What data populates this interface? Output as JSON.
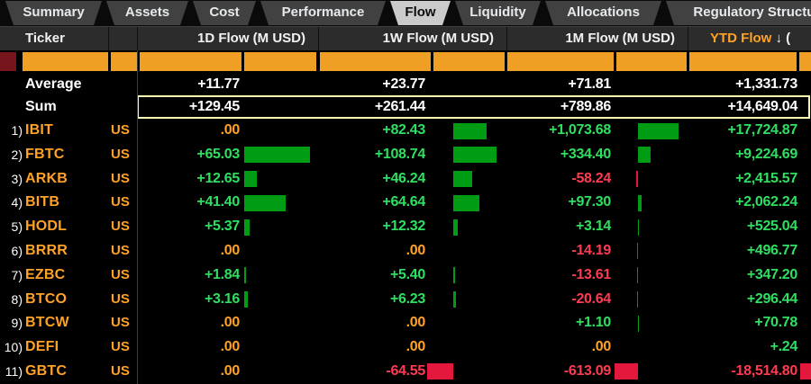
{
  "tabs": [
    {
      "label": "Summary",
      "selected": false
    },
    {
      "label": "Assets",
      "selected": false
    },
    {
      "label": "Cost",
      "selected": false
    },
    {
      "label": "Performance",
      "selected": false
    },
    {
      "label": "Flow",
      "selected": true
    },
    {
      "label": "Liquidity",
      "selected": false
    },
    {
      "label": "Allocations",
      "selected": false
    },
    {
      "label": "Regulatory Structure",
      "selected": false
    }
  ],
  "header": {
    "ticker_label": "Ticker",
    "flow_columns": [
      "1D Flow (M USD)",
      "1W Flow (M USD)",
      "1M Flow (M USD)"
    ],
    "ytd_column": {
      "label": "YTD Flow",
      "sort_icon": "↓",
      "suffix": "("
    }
  },
  "summary_rows": [
    {
      "label": "Average",
      "values": [
        "+11.77",
        "+23.77",
        "+71.81",
        "+1,331.73"
      ],
      "highlighted": false
    },
    {
      "label": "Sum",
      "values": [
        "+129.45",
        "+261.44",
        "+789.86",
        "+14,649.04"
      ],
      "highlighted": true
    }
  ],
  "rows": [
    {
      "num": "1)",
      "ticker": "IBIT",
      "exchange": "US",
      "cells": [
        {
          "text": ".00",
          "value": 0
        },
        {
          "text": "+82.43",
          "value": 82.43
        },
        {
          "text": "+1,073.68",
          "value": 1073.68
        },
        {
          "text": "+17,724.87",
          "value": 17724.87
        }
      ]
    },
    {
      "num": "2)",
      "ticker": "FBTC",
      "exchange": "US",
      "cells": [
        {
          "text": "+65.03",
          "value": 65.03
        },
        {
          "text": "+108.74",
          "value": 108.74
        },
        {
          "text": "+334.40",
          "value": 334.4
        },
        {
          "text": "+9,224.69",
          "value": 9224.69
        }
      ]
    },
    {
      "num": "3)",
      "ticker": "ARKB",
      "exchange": "US",
      "cells": [
        {
          "text": "+12.65",
          "value": 12.65
        },
        {
          "text": "+46.24",
          "value": 46.24
        },
        {
          "text": "-58.24",
          "value": -58.24
        },
        {
          "text": "+2,415.57",
          "value": 2415.57
        }
      ]
    },
    {
      "num": "4)",
      "ticker": "BITB",
      "exchange": "US",
      "cells": [
        {
          "text": "+41.40",
          "value": 41.4
        },
        {
          "text": "+64.64",
          "value": 64.64
        },
        {
          "text": "+97.30",
          "value": 97.3
        },
        {
          "text": "+2,062.24",
          "value": 2062.24
        }
      ]
    },
    {
      "num": "5)",
      "ticker": "HODL",
      "exchange": "US",
      "cells": [
        {
          "text": "+5.37",
          "value": 5.37
        },
        {
          "text": "+12.32",
          "value": 12.32
        },
        {
          "text": "+3.14",
          "value": 3.14
        },
        {
          "text": "+525.04",
          "value": 525.04
        }
      ]
    },
    {
      "num": "6)",
      "ticker": "BRRR",
      "exchange": "US",
      "cells": [
        {
          "text": ".00",
          "value": 0
        },
        {
          "text": ".00",
          "value": 0
        },
        {
          "text": "-14.19",
          "value": -14.19
        },
        {
          "text": "+496.77",
          "value": 496.77
        }
      ]
    },
    {
      "num": "7)",
      "ticker": "EZBC",
      "exchange": "US",
      "cells": [
        {
          "text": "+1.84",
          "value": 1.84
        },
        {
          "text": "+5.40",
          "value": 5.4
        },
        {
          "text": "-13.61",
          "value": -13.61
        },
        {
          "text": "+347.20",
          "value": 347.2
        }
      ]
    },
    {
      "num": "8)",
      "ticker": "BTCO",
      "exchange": "US",
      "cells": [
        {
          "text": "+3.16",
          "value": 3.16
        },
        {
          "text": "+6.23",
          "value": 6.23
        },
        {
          "text": "-20.64",
          "value": -20.64
        },
        {
          "text": "+296.44",
          "value": 296.44
        }
      ]
    },
    {
      "num": "9)",
      "ticker": "BTCW",
      "exchange": "US",
      "cells": [
        {
          "text": ".00",
          "value": 0
        },
        {
          "text": ".00",
          "value": 0
        },
        {
          "text": "+1.10",
          "value": 1.1
        },
        {
          "text": "+70.78",
          "value": 70.78
        }
      ]
    },
    {
      "num": "10)",
      "ticker": "DEFI",
      "exchange": "US",
      "cells": [
        {
          "text": ".00",
          "value": 0
        },
        {
          "text": ".00",
          "value": 0
        },
        {
          "text": ".00",
          "value": 0
        },
        {
          "text": "+.24",
          "value": 0.24
        }
      ]
    },
    {
      "num": "11)",
      "ticker": "GBTC",
      "exchange": "US",
      "cells": [
        {
          "text": ".00",
          "value": 0
        },
        {
          "text": "-64.55",
          "value": -64.55
        },
        {
          "text": "-613.09",
          "value": -613.09
        },
        {
          "text": "-18,514.80",
          "value": -18514.8
        }
      ]
    }
  ],
  "colors": {
    "amber": "#ffa226",
    "positive_text": "#2fe060",
    "negative_text": "#ff3b52",
    "positive_bar": "#009c14",
    "negative_bar": "#e4183c",
    "filter_orange": "#ef9f24",
    "highlight_border": "#ffffb0",
    "white": "#ffffff"
  }
}
